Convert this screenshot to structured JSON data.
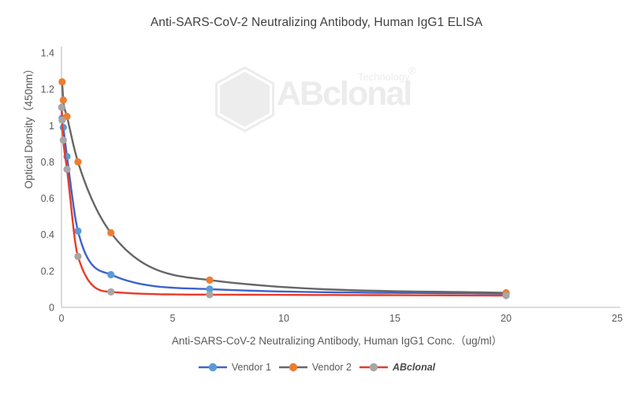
{
  "watermark": {
    "brand": "ABclonal",
    "sub": "Technology",
    "reg": "®"
  },
  "colors": {
    "axis_line": "#c6c6c6",
    "tick_text": "#595959",
    "title_text": "#3f3f3f",
    "watermark": "#ececec"
  },
  "chart_data": {
    "type": "line",
    "title": "Anti-SARS-CoV-2 Neutralizing Antibody, Human IgG1 ELISA",
    "xlabel": "Anti-SARS-CoV-2 Neutralizing Antibody, Human IgG1 Conc.（ug/ml）",
    "ylabel": "Optical Density（450nm）",
    "xlim": [
      0,
      25
    ],
    "ylim": [
      0,
      1.4
    ],
    "xticks": [
      0,
      5,
      10,
      15,
      20,
      25
    ],
    "yticks": [
      0,
      0.2,
      0.4,
      0.6,
      0.8,
      1,
      1.2,
      1.4
    ],
    "grid": false,
    "legend_position": "bottom",
    "x": [
      0.009,
      0.027,
      0.082,
      0.247,
      0.741,
      2.222,
      6.667,
      20
    ],
    "series": [
      {
        "name": "Vendor 1",
        "line_color": "#3e62cc",
        "marker_color": "#5b9bd5",
        "values": [
          1.1,
          1.04,
          0.99,
          0.83,
          0.42,
          0.18,
          0.1,
          0.075
        ]
      },
      {
        "name": "Vendor 2",
        "line_color": "#666666",
        "marker_color": "#ed7d31",
        "values": [
          null,
          1.24,
          1.14,
          1.05,
          0.8,
          0.41,
          0.15,
          0.08
        ]
      },
      {
        "name": "ABclonal",
        "line_color": "#e73b2b",
        "marker_color": "#a6a6a6",
        "values": [
          1.1,
          1.03,
          0.92,
          0.76,
          0.28,
          0.085,
          0.07,
          0.065
        ]
      }
    ]
  }
}
